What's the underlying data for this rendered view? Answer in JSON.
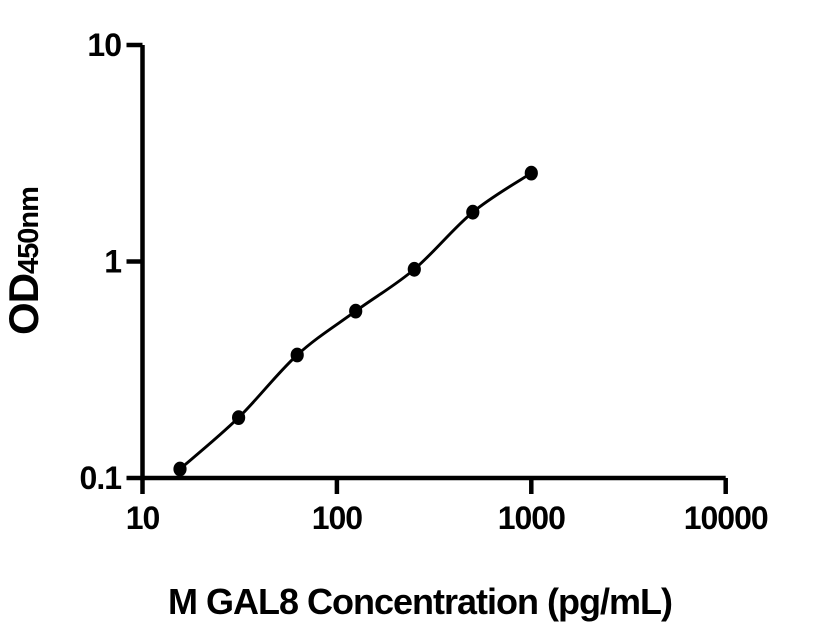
{
  "figure": {
    "background_color": "#ffffff",
    "axis_color": "#000000",
    "text_color": "#000000",
    "x_axis_title": "M GAL8 Concentration (pg/mL)",
    "y_axis_title": {
      "main": "OD",
      "subscript": "450nm"
    }
  },
  "chart_data": {
    "type": "scatter",
    "title": "",
    "xlabel": "M GAL8 Concentration (pg/mL)",
    "ylabel": "OD450nm",
    "xscale": "log",
    "yscale": "log",
    "xlim": [
      10,
      10000
    ],
    "ylim": [
      0.1,
      10
    ],
    "x_ticks": [
      10,
      100,
      1000,
      10000
    ],
    "x_tick_labels": [
      "10",
      "100",
      "1000",
      "10000"
    ],
    "y_ticks": [
      10,
      1,
      0.1
    ],
    "y_tick_labels": [
      "10",
      "1",
      "0.1"
    ],
    "x": [
      15.6,
      31.2,
      62.5,
      125,
      250,
      500,
      1000
    ],
    "y": [
      0.11,
      0.19,
      0.37,
      0.59,
      0.92,
      1.69,
      2.56
    ],
    "fit_line": true,
    "marker": "filled-circle",
    "marker_color": "#000000",
    "line_color": "#000000",
    "grid": false,
    "legend": false
  }
}
